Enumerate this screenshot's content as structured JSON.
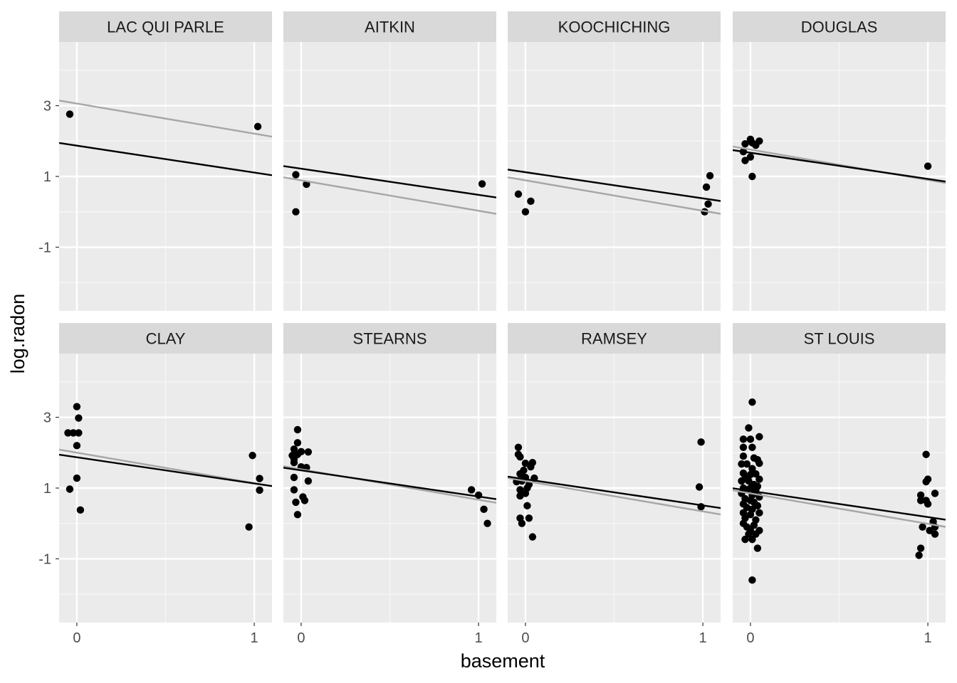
{
  "chart_data": {
    "type": "scatter",
    "xlabel": "basement",
    "ylabel": "log.radon",
    "xlim": [
      -0.1,
      1.1
    ],
    "ylim": [
      -2.8,
      4.8
    ],
    "x_ticks": [
      0,
      1
    ],
    "y_ticks": [
      3,
      1,
      -1
    ],
    "grid": true,
    "line_colors": {
      "complete_pooling": "#a6a6a6",
      "partial_pooling": "#000000"
    },
    "point_color": "#000000",
    "panels": [
      {
        "county": "LAC QUI PARLE",
        "points": [
          [
            -0.04,
            2.76
          ],
          [
            1.02,
            2.41
          ]
        ],
        "line_gray": {
          "intercept": 3.06,
          "slope": -0.85
        },
        "line_black": {
          "intercept": 1.87,
          "slope": -0.76
        }
      },
      {
        "county": "AITKIN",
        "points": [
          [
            -0.03,
            1.05
          ],
          [
            0.03,
            0.78
          ],
          [
            -0.03,
            0.0
          ],
          [
            1.02,
            0.79
          ]
        ],
        "line_gray": {
          "intercept": 0.89,
          "slope": -0.86
        },
        "line_black": {
          "intercept": 1.22,
          "slope": -0.74
        }
      },
      {
        "county": "KOOCHICHING",
        "points": [
          [
            -0.04,
            0.5
          ],
          [
            0.03,
            0.3
          ],
          [
            0.0,
            0.0
          ],
          [
            1.04,
            1.02
          ],
          [
            1.02,
            0.7
          ],
          [
            1.03,
            0.22
          ],
          [
            1.01,
            0.0
          ]
        ],
        "line_gray": {
          "intercept": 0.89,
          "slope": -0.86
        },
        "line_black": {
          "intercept": 1.12,
          "slope": -0.74
        }
      },
      {
        "county": "DOUGLAS",
        "points": [
          [
            -0.04,
            1.7
          ],
          [
            -0.03,
            1.92
          ],
          [
            -0.03,
            1.45
          ],
          [
            0.0,
            2.05
          ],
          [
            0.03,
            1.88
          ],
          [
            0.05,
            2.0
          ],
          [
            0.0,
            1.55
          ],
          [
            0.01,
            1.95
          ],
          [
            0.01,
            1.0
          ],
          [
            1.0,
            1.29
          ]
        ],
        "line_gray": {
          "intercept": 1.76,
          "slope": -0.86
        },
        "line_black": {
          "intercept": 1.67,
          "slope": -0.74
        }
      },
      {
        "county": "CLAY",
        "points": [
          [
            -0.05,
            2.56
          ],
          [
            -0.02,
            2.56
          ],
          [
            0.01,
            2.56
          ],
          [
            0.0,
            3.3
          ],
          [
            0.01,
            2.98
          ],
          [
            0.0,
            2.2
          ],
          [
            0.0,
            1.28
          ],
          [
            -0.04,
            0.97
          ],
          [
            0.02,
            0.38
          ],
          [
            0.99,
            1.92
          ],
          [
            1.03,
            1.27
          ],
          [
            1.03,
            0.94
          ],
          [
            0.97,
            -0.1
          ]
        ],
        "line_gray": {
          "intercept": 2.0,
          "slope": -0.86
        },
        "line_black": {
          "intercept": 1.87,
          "slope": -0.74
        }
      },
      {
        "county": "STEARNS",
        "points": [
          [
            -0.02,
            2.65
          ],
          [
            -0.02,
            2.28
          ],
          [
            -0.04,
            2.1
          ],
          [
            -0.05,
            1.92
          ],
          [
            -0.04,
            1.82
          ],
          [
            -0.02,
            1.95
          ],
          [
            0.0,
            2.03
          ],
          [
            0.04,
            2.02
          ],
          [
            0.0,
            1.6
          ],
          [
            0.03,
            1.58
          ],
          [
            -0.04,
            1.72
          ],
          [
            -0.04,
            1.3
          ],
          [
            0.04,
            1.2
          ],
          [
            -0.04,
            0.95
          ],
          [
            0.01,
            0.75
          ],
          [
            0.02,
            0.65
          ],
          [
            -0.03,
            0.6
          ],
          [
            -0.02,
            0.25
          ],
          [
            0.96,
            0.95
          ],
          [
            1.0,
            0.8
          ],
          [
            1.03,
            0.4
          ],
          [
            1.05,
            0.0
          ]
        ],
        "line_gray": {
          "intercept": 1.53,
          "slope": -0.86
        },
        "line_black": {
          "intercept": 1.5,
          "slope": -0.74
        }
      },
      {
        "county": "RAMSEY",
        "points": [
          [
            -0.04,
            2.15
          ],
          [
            -0.04,
            1.95
          ],
          [
            -0.03,
            1.88
          ],
          [
            0.0,
            1.7
          ],
          [
            0.04,
            1.72
          ],
          [
            0.03,
            1.6
          ],
          [
            -0.01,
            1.5
          ],
          [
            -0.03,
            1.4
          ],
          [
            0.0,
            1.3
          ],
          [
            0.05,
            1.28
          ],
          [
            -0.05,
            1.18
          ],
          [
            -0.02,
            1.2
          ],
          [
            0.02,
            1.1
          ],
          [
            0.01,
            1.0
          ],
          [
            -0.03,
            0.95
          ],
          [
            0.0,
            0.85
          ],
          [
            -0.03,
            0.78
          ],
          [
            0.01,
            0.5
          ],
          [
            -0.03,
            0.15
          ],
          [
            0.02,
            0.15
          ],
          [
            -0.02,
            0.0
          ],
          [
            0.04,
            -0.38
          ],
          [
            0.99,
            2.3
          ],
          [
            0.98,
            1.03
          ],
          [
            0.99,
            0.47
          ]
        ],
        "line_gray": {
          "intercept": 1.2,
          "slope": -0.86
        },
        "line_black": {
          "intercept": 1.25,
          "slope": -0.74
        }
      },
      {
        "county": "ST LOUIS",
        "points": [
          [
            0.01,
            3.43
          ],
          [
            -0.01,
            2.7
          ],
          [
            0.05,
            2.45
          ],
          [
            -0.04,
            2.38
          ],
          [
            0.0,
            2.38
          ],
          [
            -0.04,
            2.15
          ],
          [
            0.01,
            2.15
          ],
          [
            -0.04,
            1.9
          ],
          [
            0.02,
            1.85
          ],
          [
            0.04,
            1.8
          ],
          [
            0.05,
            1.7
          ],
          [
            -0.05,
            1.68
          ],
          [
            -0.02,
            1.68
          ],
          [
            0.01,
            1.55
          ],
          [
            -0.04,
            1.42
          ],
          [
            0.03,
            1.4
          ],
          [
            0.0,
            1.38
          ],
          [
            -0.03,
            1.3
          ],
          [
            0.05,
            1.25
          ],
          [
            -0.05,
            1.2
          ],
          [
            -0.01,
            1.2
          ],
          [
            0.02,
            1.1
          ],
          [
            0.04,
            1.05
          ],
          [
            -0.04,
            1.0
          ],
          [
            0.0,
            1.0
          ],
          [
            -0.02,
            0.95
          ],
          [
            0.03,
            0.92
          ],
          [
            -0.05,
            0.85
          ],
          [
            0.01,
            0.8
          ],
          [
            0.05,
            0.75
          ],
          [
            -0.03,
            0.7
          ],
          [
            0.0,
            0.65
          ],
          [
            0.02,
            0.6
          ],
          [
            -0.04,
            0.55
          ],
          [
            0.04,
            0.5
          ],
          [
            -0.02,
            0.45
          ],
          [
            0.01,
            0.4
          ],
          [
            -0.04,
            0.3
          ],
          [
            0.05,
            0.3
          ],
          [
            0.0,
            0.25
          ],
          [
            -0.03,
            0.15
          ],
          [
            0.03,
            0.1
          ],
          [
            -0.04,
            0.0
          ],
          [
            0.02,
            -0.05
          ],
          [
            -0.02,
            -0.1
          ],
          [
            0.0,
            -0.2
          ],
          [
            0.05,
            -0.2
          ],
          [
            -0.01,
            -0.3
          ],
          [
            0.03,
            -0.3
          ],
          [
            -0.03,
            -0.45
          ],
          [
            0.01,
            -0.45
          ],
          [
            0.04,
            -0.7
          ],
          [
            0.01,
            -1.6
          ],
          [
            0.99,
            1.95
          ],
          [
            1.0,
            1.25
          ],
          [
            0.99,
            1.18
          ],
          [
            1.04,
            0.85
          ],
          [
            0.96,
            0.8
          ],
          [
            0.99,
            0.65
          ],
          [
            0.96,
            0.65
          ],
          [
            1.0,
            0.55
          ],
          [
            1.03,
            0.05
          ],
          [
            1.04,
            -0.1
          ],
          [
            0.97,
            -0.1
          ],
          [
            1.01,
            -0.2
          ],
          [
            1.04,
            -0.3
          ],
          [
            0.96,
            -0.7
          ],
          [
            0.95,
            -0.9
          ]
        ],
        "line_gray": {
          "intercept": 0.85,
          "slope": -0.86
        },
        "line_black": {
          "intercept": 0.92,
          "slope": -0.74
        }
      }
    ]
  }
}
